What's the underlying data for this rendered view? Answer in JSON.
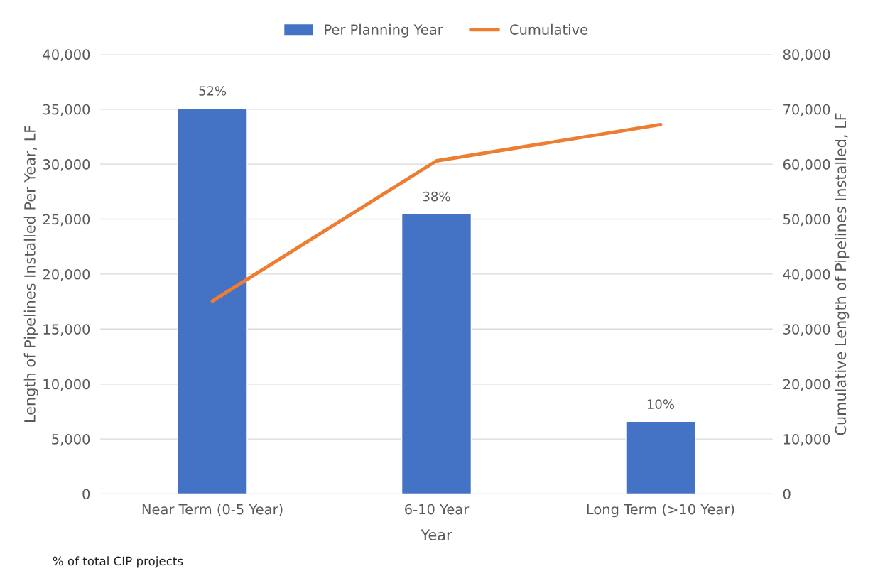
{
  "chart_data": {
    "type": "bar",
    "categories": [
      "Near Term (0-5 Year)",
      "6-10 Year",
      "Long Term (>10 Year)"
    ],
    "series": [
      {
        "name": "Per Planning Year",
        "color": "#4472c4",
        "values": [
          35100,
          25500,
          6600
        ]
      },
      {
        "name": "Cumulative",
        "type": "line",
        "axis": "y2",
        "color": "#ed7d31",
        "values": [
          35100,
          60600,
          67200
        ]
      }
    ],
    "xlabel": "Year",
    "ylabel": "Length of Pipelines Installed Per Year, LF",
    "y2label": "Cumulative Length of Pipelines Installed, LF",
    "ylim": [
      0,
      40000
    ],
    "yticks": [
      {
        "value": 0,
        "label": "0"
      },
      {
        "value": 5000,
        "label": "5,000"
      },
      {
        "value": 10000,
        "label": "10,000"
      },
      {
        "value": 15000,
        "label": "15,000"
      },
      {
        "value": 20000,
        "label": "20,000"
      },
      {
        "value": 25000,
        "label": "25,000"
      },
      {
        "value": 30000,
        "label": "30,000"
      },
      {
        "value": 35000,
        "label": "35,000"
      },
      {
        "value": 40000,
        "label": "40,000"
      }
    ],
    "y2lim": [
      0,
      80000
    ],
    "y2ticks": [
      {
        "value": 0,
        "label": "0"
      },
      {
        "value": 10000,
        "label": "10,000"
      },
      {
        "value": 20000,
        "label": "20,000"
      },
      {
        "value": 30000,
        "label": "30,000"
      },
      {
        "value": 40000,
        "label": "40,000"
      },
      {
        "value": 50000,
        "label": "50,000"
      },
      {
        "value": 60000,
        "label": "60,000"
      },
      {
        "value": 70000,
        "label": "70,000"
      },
      {
        "value": 80000,
        "label": "80,000"
      }
    ],
    "grid": "y",
    "legend": "top",
    "annotations": [
      {
        "text": "52%",
        "x": "Near Term (0-5 Year)",
        "y": 35100
      },
      {
        "text": "38%",
        "x": "6-10 Year",
        "y": 25500
      },
      {
        "text": "10%",
        "x": "Long Term (>10 Year)",
        "y": 6600
      },
      "% of total CIP projects"
    ]
  }
}
